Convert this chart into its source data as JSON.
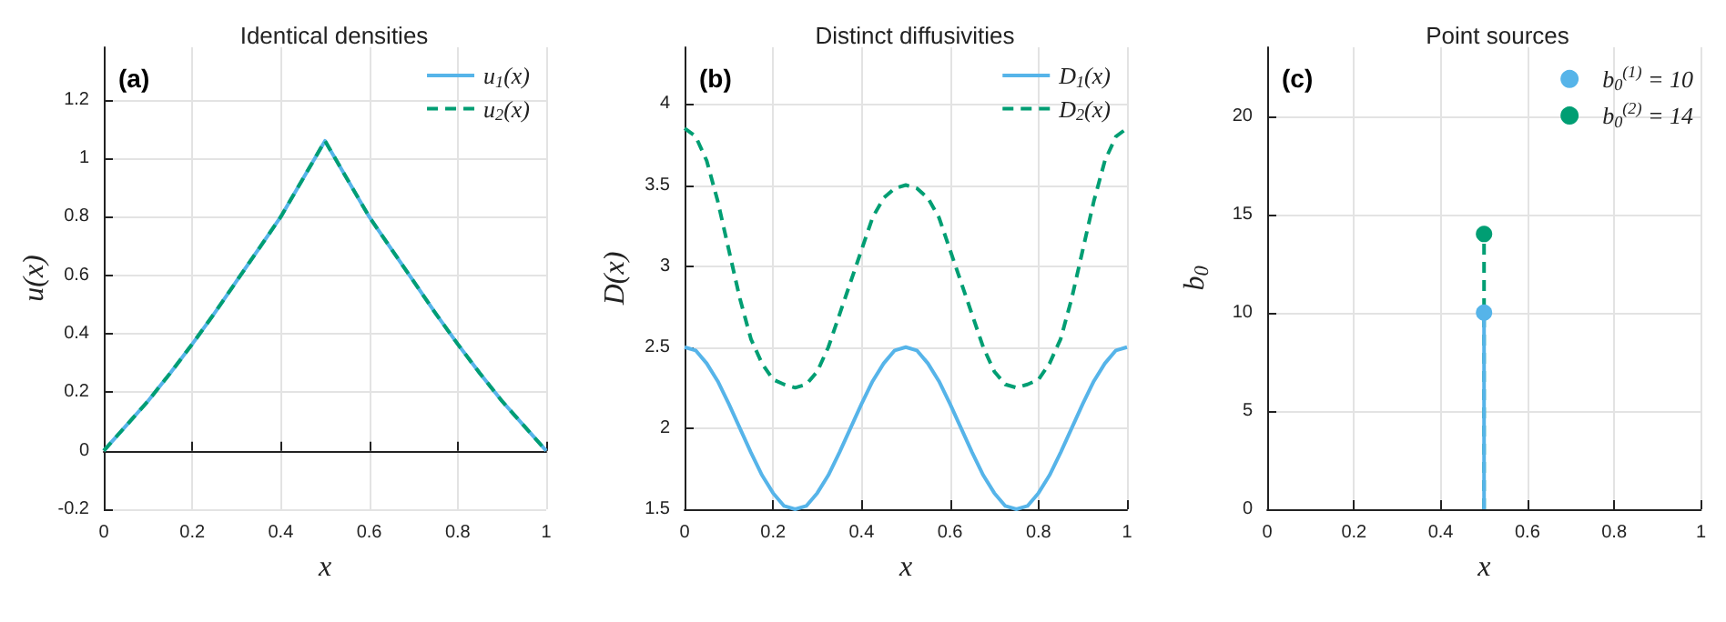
{
  "chart_data": [
    {
      "type": "line",
      "title": "Identical densities",
      "xlabel": "x",
      "ylabel": "u(x)",
      "annotations": [
        "(a)"
      ],
      "xlim": [
        0,
        1
      ],
      "xticks": [
        0,
        0.2,
        0.4,
        0.6,
        0.8,
        1
      ],
      "ylim": [
        -0.2,
        1.38
      ],
      "yticks": [
        -0.2,
        0,
        0.2,
        0.4,
        0.6,
        0.8,
        1,
        1.2
      ],
      "grid": true,
      "legend": "top right",
      "marker": "none",
      "x": [
        0,
        0.05,
        0.1,
        0.15,
        0.2,
        0.25,
        0.3,
        0.35,
        0.4,
        0.45,
        0.5,
        0.55,
        0.6,
        0.65,
        0.7,
        0.75,
        0.8,
        0.85,
        0.9,
        0.95,
        1
      ],
      "series": [
        {
          "name": "u$_{1}$(x)",
          "color": "#56b4e9",
          "line_style": "solid",
          "values": [
            0,
            0.085,
            0.17,
            0.265,
            0.365,
            0.47,
            0.58,
            0.69,
            0.8,
            0.93,
            1.06,
            0.93,
            0.8,
            0.69,
            0.58,
            0.47,
            0.365,
            0.265,
            0.17,
            0.085,
            0
          ]
        },
        {
          "name": "u$_{2}$(x)",
          "color": "#009e73",
          "line_style": "dashed",
          "values": [
            0,
            0.085,
            0.17,
            0.265,
            0.365,
            0.47,
            0.58,
            0.69,
            0.8,
            0.93,
            1.06,
            0.93,
            0.8,
            0.69,
            0.58,
            0.47,
            0.365,
            0.265,
            0.17,
            0.085,
            0
          ]
        }
      ]
    },
    {
      "type": "line",
      "title": "Distinct diffusivities",
      "xlabel": "x",
      "ylabel": "D(x)",
      "annotations": [
        "(b)"
      ],
      "xlim": [
        0,
        1
      ],
      "xticks": [
        0,
        0.2,
        0.4,
        0.6,
        0.8,
        1
      ],
      "ylim": [
        1.5,
        4.35
      ],
      "yticks": [
        1.5,
        2,
        2.5,
        3,
        3.5,
        4
      ],
      "grid": true,
      "legend": "top right",
      "marker": "none",
      "x": [
        0,
        0.025,
        0.05,
        0.075,
        0.1,
        0.125,
        0.15,
        0.175,
        0.2,
        0.225,
        0.25,
        0.275,
        0.3,
        0.325,
        0.35,
        0.375,
        0.4,
        0.425,
        0.45,
        0.475,
        0.5,
        0.525,
        0.55,
        0.575,
        0.6,
        0.625,
        0.65,
        0.675,
        0.7,
        0.725,
        0.75,
        0.775,
        0.8,
        0.825,
        0.85,
        0.875,
        0.9,
        0.925,
        0.95,
        0.975,
        1
      ],
      "series": [
        {
          "name": "D$_{1}$(x)",
          "color": "#56b4e9",
          "line_style": "solid",
          "values": [
            2.5,
            2.48,
            2.4,
            2.29,
            2.15,
            2,
            1.85,
            1.71,
            1.6,
            1.52,
            1.5,
            1.52,
            1.6,
            1.71,
            1.85,
            2,
            2.15,
            2.29,
            2.4,
            2.48,
            2.5,
            2.48,
            2.4,
            2.29,
            2.15,
            2,
            1.85,
            1.71,
            1.6,
            1.52,
            1.5,
            1.52,
            1.6,
            1.71,
            1.85,
            2,
            2.15,
            2.29,
            2.4,
            2.48,
            2.5
          ]
        },
        {
          "name": "D$_{2}$(x)",
          "color": "#009e73",
          "line_style": "dashed",
          "values": [
            3.85,
            3.8,
            3.65,
            3.4,
            3.1,
            2.8,
            2.55,
            2.4,
            2.3,
            2.27,
            2.25,
            2.27,
            2.35,
            2.5,
            2.7,
            2.9,
            3.1,
            3.3,
            3.42,
            3.48,
            3.5,
            3.48,
            3.42,
            3.3,
            3.1,
            2.9,
            2.7,
            2.5,
            2.35,
            2.27,
            2.25,
            2.27,
            2.3,
            2.4,
            2.55,
            2.8,
            3.1,
            3.4,
            3.65,
            3.8,
            3.85
          ]
        }
      ]
    },
    {
      "type": "lollipop",
      "title": "Point sources",
      "xlabel": "x",
      "ylabel": "b$_{0}$",
      "annotations": [
        "(c)"
      ],
      "xlim": [
        0,
        1
      ],
      "xticks": [
        0,
        0.2,
        0.4,
        0.6,
        0.8,
        1
      ],
      "ylim": [
        0,
        23.5
      ],
      "yticks": [
        0,
        5,
        10,
        15,
        20
      ],
      "grid": true,
      "legend": "top right",
      "marker": "circle",
      "series": [
        {
          "name": "b$_{0}$$^{(1)}$ = 10",
          "color": "#56b4e9",
          "line_style": "solid",
          "x": [
            0.5
          ],
          "values": [
            10
          ]
        },
        {
          "name": "b$_{0}$$^{(2)}$ = 14",
          "color": "#009e73",
          "line_style": "dashed",
          "x": [
            0.5
          ],
          "values": [
            14
          ]
        }
      ]
    }
  ]
}
